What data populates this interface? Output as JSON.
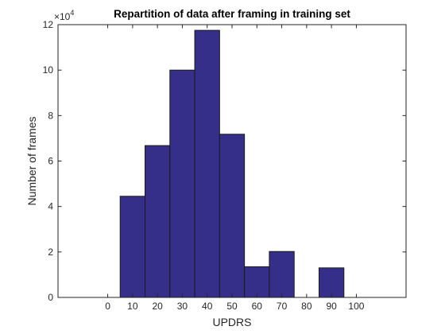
{
  "chart_data": {
    "type": "bar",
    "title": "Repartition of data after framing in training set",
    "xlabel": "UPDRS",
    "ylabel": "Number of frames",
    "y_exponent_label": "×10",
    "y_exponent_power": "4",
    "y_scale_factor": 10000,
    "xlim": [
      -20,
      120
    ],
    "ylim": [
      0,
      120000
    ],
    "x_ticks": [
      0,
      10,
      20,
      30,
      40,
      50,
      60,
      70,
      80,
      90,
      100
    ],
    "x_tick_labels": [
      "0",
      "10",
      "20",
      "30",
      "40",
      "50",
      "60",
      "70",
      "80",
      "90",
      "100"
    ],
    "y_ticks": [
      0,
      20000,
      40000,
      60000,
      80000,
      100000,
      120000
    ],
    "y_tick_labels": [
      "0",
      "2",
      "4",
      "6",
      "8",
      "10",
      "12"
    ],
    "bars": [
      {
        "x_start": 5,
        "x_end": 15,
        "value": 44500
      },
      {
        "x_start": 15,
        "x_end": 25,
        "value": 66800
      },
      {
        "x_start": 25,
        "x_end": 35,
        "value": 100000
      },
      {
        "x_start": 35,
        "x_end": 45,
        "value": 117500
      },
      {
        "x_start": 45,
        "x_end": 55,
        "value": 71800
      },
      {
        "x_start": 55,
        "x_end": 65,
        "value": 13500
      },
      {
        "x_start": 65,
        "x_end": 75,
        "value": 20200
      },
      {
        "x_start": 75,
        "x_end": 85,
        "value": 0
      },
      {
        "x_start": 85,
        "x_end": 95,
        "value": 13000
      }
    ],
    "bar_color": "#352f8a",
    "grid": false,
    "legend": false
  }
}
